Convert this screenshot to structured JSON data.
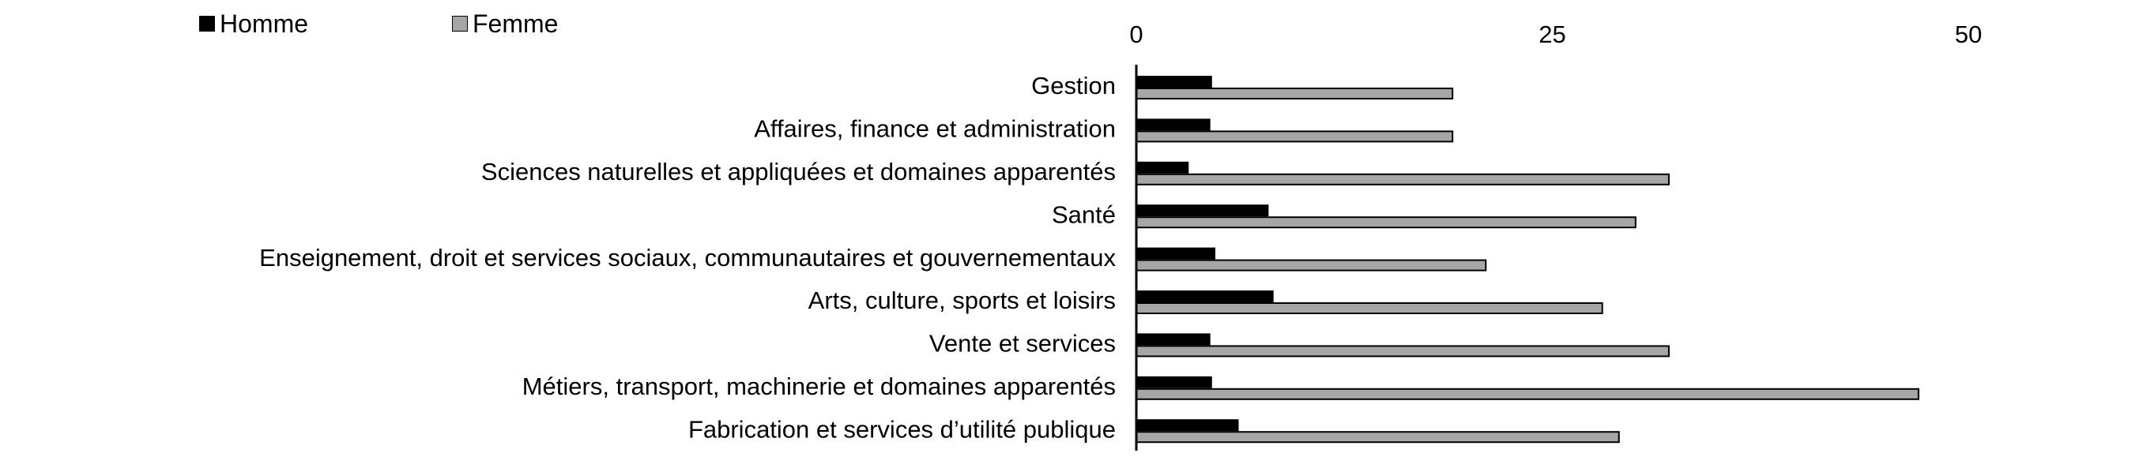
{
  "chart_data": {
    "type": "bar",
    "orientation": "horizontal",
    "categories": [
      "Gestion",
      "Affaires, finance et administration",
      "Sciences naturelles et appliquées et domaines apparentés",
      "Santé",
      "Enseignement, droit et services sociaux, communautaires et gouvernementaux",
      "Arts, culture, sports et loisirs",
      "Vente et services",
      "Métiers, transport, machinerie et domaines apparentés",
      "Fabrication et services d’utilité publique"
    ],
    "series": [
      {
        "name": "Homme",
        "color": "#000000",
        "values": [
          4.5,
          4.4,
          3.1,
          7.9,
          4.7,
          8.2,
          4.4,
          4.5,
          6.1
        ]
      },
      {
        "name": "Femme",
        "color": "#a6a6a6",
        "values": [
          19.0,
          19.0,
          32.0,
          30.0,
          21.0,
          28.0,
          32.0,
          47.0,
          29.0
        ]
      }
    ],
    "xlim": [
      0,
      50
    ],
    "xticks": [
      0,
      25,
      50
    ],
    "axis_position": "top",
    "grid": false,
    "legend_position": "top-left"
  }
}
